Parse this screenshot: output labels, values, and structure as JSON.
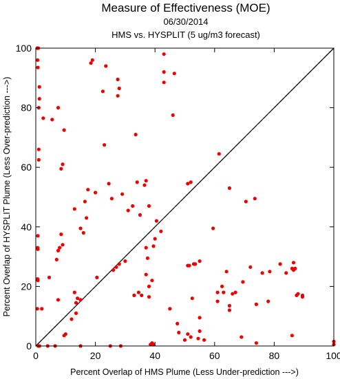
{
  "chart_data": {
    "type": "scatter",
    "title": "Measure of Effectiveness (MOE)",
    "subtitle_date": "06/30/2014",
    "subtitle_desc": "HMS vs. HYSPLIT  (5 ug/m3 forecast)",
    "xlabel": "Percent Overlap of HMS Plume (Less Under-prediction --->)",
    "ylabel": "Percent Overlap of HYSPLIT Plume (Less Over-prediction --->)",
    "xlim": [
      0,
      100
    ],
    "ylim": [
      0,
      100
    ],
    "xticks": [
      0,
      20,
      40,
      60,
      80,
      100
    ],
    "yticks": [
      0,
      20,
      40,
      60,
      80,
      100
    ],
    "reference_line": "y = x",
    "grid": false,
    "point_color": "#ee0000",
    "points": [
      [
        0.5,
        100
      ],
      [
        0.8,
        100
      ],
      [
        0.6,
        96
      ],
      [
        0.7,
        93.5
      ],
      [
        1.2,
        87
      ],
      [
        1,
        80
      ],
      [
        1.2,
        83
      ],
      [
        2.5,
        76.5
      ],
      [
        1,
        66
      ],
      [
        1,
        62.5
      ],
      [
        0.7,
        37
      ],
      [
        0.6,
        33
      ],
      [
        0.7,
        32.5
      ],
      [
        0.6,
        22.5
      ],
      [
        0.7,
        22
      ],
      [
        0.5,
        12.5
      ],
      [
        2,
        12.5
      ],
      [
        0.8,
        0
      ],
      [
        1.2,
        0
      ],
      [
        4,
        0
      ],
      [
        6.5,
        0
      ],
      [
        4.5,
        23
      ],
      [
        5.5,
        76
      ],
      [
        7.5,
        80
      ],
      [
        8.5,
        59.5
      ],
      [
        9,
        61
      ],
      [
        9.5,
        72.5
      ],
      [
        8.5,
        37.5
      ],
      [
        8,
        33
      ],
      [
        7.5,
        32
      ],
      [
        7,
        29
      ],
      [
        9,
        34
      ],
      [
        7.5,
        15.5
      ],
      [
        9.5,
        3.5
      ],
      [
        10,
        4
      ],
      [
        12,
        9
      ],
      [
        13,
        18
      ],
      [
        13.5,
        11
      ],
      [
        13.5,
        14.5
      ],
      [
        14,
        16
      ],
      [
        15,
        15.5
      ],
      [
        15,
        0
      ],
      [
        13,
        46
      ],
      [
        15,
        39.5
      ],
      [
        16.5,
        48.5
      ],
      [
        16,
        38
      ],
      [
        17,
        43
      ],
      [
        17.5,
        52.5
      ],
      [
        18.5,
        95
      ],
      [
        19,
        96
      ],
      [
        20,
        51.5
      ],
      [
        20.5,
        23
      ],
      [
        22.5,
        85.5
      ],
      [
        23,
        67.5
      ],
      [
        23.5,
        94
      ],
      [
        24.5,
        54.5
      ],
      [
        25.5,
        49.5
      ],
      [
        25,
        0
      ],
      [
        26,
        25.5
      ],
      [
        27,
        26.5
      ],
      [
        27.5,
        89.5
      ],
      [
        28,
        86.5
      ],
      [
        27.5,
        84
      ],
      [
        28,
        27.5
      ],
      [
        29,
        51
      ],
      [
        28.5,
        0
      ],
      [
        30,
        28.5
      ],
      [
        31,
        45.5
      ],
      [
        32.5,
        47
      ],
      [
        33.5,
        71
      ],
      [
        34,
        55
      ],
      [
        33,
        17
      ],
      [
        34.5,
        18
      ],
      [
        35,
        44
      ],
      [
        35.5,
        17
      ],
      [
        36.5,
        54
      ],
      [
        37,
        55.5
      ],
      [
        38,
        47
      ],
      [
        37,
        33
      ],
      [
        37.5,
        29.5
      ],
      [
        38,
        20
      ],
      [
        37,
        24
      ],
      [
        38,
        16.5
      ],
      [
        39,
        22
      ],
      [
        39.5,
        33.5
      ],
      [
        40,
        36
      ],
      [
        40.5,
        42
      ],
      [
        39,
        1
      ],
      [
        39.5,
        0.5
      ],
      [
        38.5,
        0.5
      ],
      [
        42,
        38.5
      ],
      [
        43,
        98
      ],
      [
        43,
        92
      ],
      [
        43,
        88.5
      ],
      [
        46,
        77.5
      ],
      [
        46.5,
        91.5
      ],
      [
        45,
        12.5
      ],
      [
        47.5,
        7.5
      ],
      [
        48,
        4.5
      ],
      [
        50,
        2
      ],
      [
        51,
        4
      ],
      [
        51,
        27
      ],
      [
        51.5,
        27
      ],
      [
        51,
        54.5
      ],
      [
        52,
        55
      ],
      [
        52.5,
        16
      ],
      [
        52,
        3
      ],
      [
        53,
        27.5
      ],
      [
        53.5,
        27.5
      ],
      [
        54.5,
        2.5
      ],
      [
        55,
        9.5
      ],
      [
        55,
        28.5
      ],
      [
        55,
        5
      ],
      [
        56.5,
        2
      ],
      [
        59.5,
        39.5
      ],
      [
        61,
        18
      ],
      [
        61.5,
        64.5
      ],
      [
        61,
        15
      ],
      [
        62.5,
        20
      ],
      [
        63,
        18
      ],
      [
        64,
        25
      ],
      [
        65,
        53
      ],
      [
        65,
        12
      ],
      [
        66,
        17.5
      ],
      [
        65,
        13.5
      ],
      [
        67,
        18
      ],
      [
        69.5,
        21.5
      ],
      [
        69,
        3
      ],
      [
        70.5,
        48.5
      ],
      [
        72,
        26.5
      ],
      [
        73.5,
        49.5
      ],
      [
        74,
        14
      ],
      [
        74,
        1
      ],
      [
        76,
        24.5
      ],
      [
        78.5,
        25
      ],
      [
        78,
        15
      ],
      [
        82,
        27.5
      ],
      [
        84,
        24.5
      ],
      [
        86,
        26
      ],
      [
        86.5,
        25.5
      ],
      [
        86,
        3.5
      ],
      [
        86.5,
        28
      ],
      [
        87,
        26
      ],
      [
        87.5,
        17
      ],
      [
        88,
        17.5
      ],
      [
        89.5,
        17
      ],
      [
        89.5,
        16.5
      ],
      [
        100,
        0.5
      ],
      [
        100,
        1.5
      ]
    ]
  }
}
